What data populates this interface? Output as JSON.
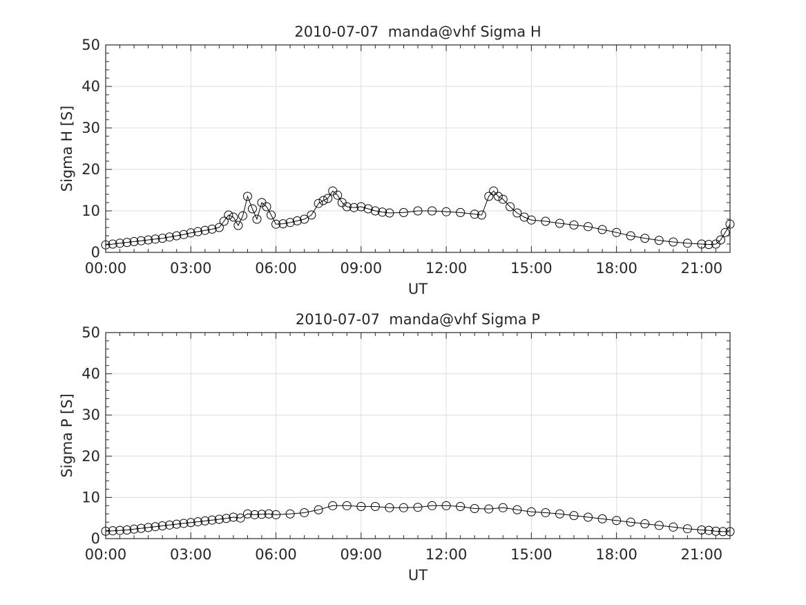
{
  "chart_data": [
    {
      "type": "line",
      "title": "2010-07-07  manda@vhf Sigma H",
      "xlabel": "UT",
      "ylabel": "Sigma H [S]",
      "xlim": [
        0,
        22.0
      ],
      "ylim": [
        0,
        50
      ],
      "x_unit": "hours UT",
      "xticks": [
        0,
        3,
        6,
        9,
        12,
        15,
        18,
        21
      ],
      "xtick_labels": [
        "00:00",
        "03:00",
        "06:00",
        "09:00",
        "12:00",
        "15:00",
        "18:00",
        "21:00"
      ],
      "yticks": [
        0,
        10,
        20,
        30,
        40,
        50
      ],
      "ytick_labels": [
        "0",
        "10",
        "20",
        "30",
        "40",
        "50"
      ],
      "grid": true,
      "marker": "open-circle",
      "x": [
        0.0,
        0.25,
        0.5,
        0.75,
        1.0,
        1.25,
        1.5,
        1.75,
        2.0,
        2.25,
        2.5,
        2.75,
        3.0,
        3.25,
        3.5,
        3.75,
        4.0,
        4.17,
        4.33,
        4.5,
        4.67,
        4.83,
        5.0,
        5.17,
        5.33,
        5.5,
        5.67,
        5.83,
        6.0,
        6.25,
        6.5,
        6.75,
        7.0,
        7.25,
        7.5,
        7.67,
        7.83,
        8.0,
        8.17,
        8.33,
        8.5,
        8.75,
        9.0,
        9.25,
        9.5,
        9.75,
        10.0,
        10.5,
        11.0,
        11.5,
        12.0,
        12.5,
        13.0,
        13.25,
        13.5,
        13.67,
        13.83,
        14.0,
        14.25,
        14.5,
        14.75,
        15.0,
        15.5,
        16.0,
        16.5,
        17.0,
        17.5,
        18.0,
        18.5,
        19.0,
        19.5,
        20.0,
        20.5,
        21.0,
        21.25,
        21.5,
        21.67,
        21.83,
        22.0
      ],
      "y": [
        1.8,
        2.0,
        2.2,
        2.4,
        2.6,
        2.8,
        3.0,
        3.2,
        3.4,
        3.7,
        4.0,
        4.3,
        4.7,
        5.0,
        5.3,
        5.6,
        6.0,
        7.5,
        9.0,
        8.5,
        6.5,
        8.8,
        13.5,
        10.5,
        8.0,
        12.0,
        11.0,
        9.0,
        6.8,
        6.9,
        7.2,
        7.6,
        8.0,
        9.0,
        11.8,
        12.5,
        13.0,
        14.8,
        13.8,
        12.0,
        11.0,
        10.8,
        11.0,
        10.5,
        10.0,
        9.7,
        9.5,
        9.6,
        10.0,
        10.0,
        9.8,
        9.6,
        9.2,
        9.0,
        13.5,
        14.8,
        13.5,
        12.8,
        11.0,
        9.5,
        8.5,
        7.8,
        7.5,
        7.0,
        6.6,
        6.2,
        5.5,
        4.8,
        4.0,
        3.4,
        2.9,
        2.5,
        2.2,
        2.0,
        1.9,
        2.0,
        3.0,
        4.8,
        6.8
      ]
    },
    {
      "type": "line",
      "title": "2010-07-07  manda@vhf Sigma P",
      "xlabel": "UT",
      "ylabel": "Sigma P [S]",
      "xlim": [
        0,
        22.0
      ],
      "ylim": [
        0,
        50
      ],
      "x_unit": "hours UT",
      "xticks": [
        0,
        3,
        6,
        9,
        12,
        15,
        18,
        21
      ],
      "xtick_labels": [
        "00:00",
        "03:00",
        "06:00",
        "09:00",
        "12:00",
        "15:00",
        "18:00",
        "21:00"
      ],
      "yticks": [
        0,
        10,
        20,
        30,
        40,
        50
      ],
      "ytick_labels": [
        "0",
        "10",
        "20",
        "30",
        "40",
        "50"
      ],
      "grid": true,
      "marker": "open-circle",
      "x": [
        0.0,
        0.25,
        0.5,
        0.75,
        1.0,
        1.25,
        1.5,
        1.75,
        2.0,
        2.25,
        2.5,
        2.75,
        3.0,
        3.25,
        3.5,
        3.75,
        4.0,
        4.25,
        4.5,
        4.75,
        5.0,
        5.25,
        5.5,
        5.75,
        6.0,
        6.5,
        7.0,
        7.5,
        8.0,
        8.5,
        9.0,
        9.5,
        10.0,
        10.5,
        11.0,
        11.5,
        12.0,
        12.5,
        13.0,
        13.5,
        14.0,
        14.5,
        15.0,
        15.5,
        16.0,
        16.5,
        17.0,
        17.5,
        18.0,
        18.5,
        19.0,
        19.5,
        20.0,
        20.5,
        21.0,
        21.25,
        21.5,
        21.75,
        22.0
      ],
      "y": [
        1.8,
        1.9,
        2.0,
        2.1,
        2.3,
        2.5,
        2.7,
        2.9,
        3.1,
        3.3,
        3.5,
        3.7,
        3.9,
        4.1,
        4.3,
        4.5,
        4.7,
        4.9,
        5.2,
        5.0,
        6.0,
        5.8,
        5.9,
        6.0,
        5.8,
        6.0,
        6.3,
        7.0,
        8.0,
        8.0,
        7.8,
        7.8,
        7.5,
        7.5,
        7.6,
        8.0,
        8.0,
        7.8,
        7.3,
        7.2,
        7.5,
        7.0,
        6.5,
        6.3,
        6.0,
        5.6,
        5.2,
        4.8,
        4.4,
        4.0,
        3.6,
        3.2,
        2.8,
        2.4,
        2.1,
        2.0,
        1.8,
        1.7,
        1.7
      ]
    }
  ]
}
